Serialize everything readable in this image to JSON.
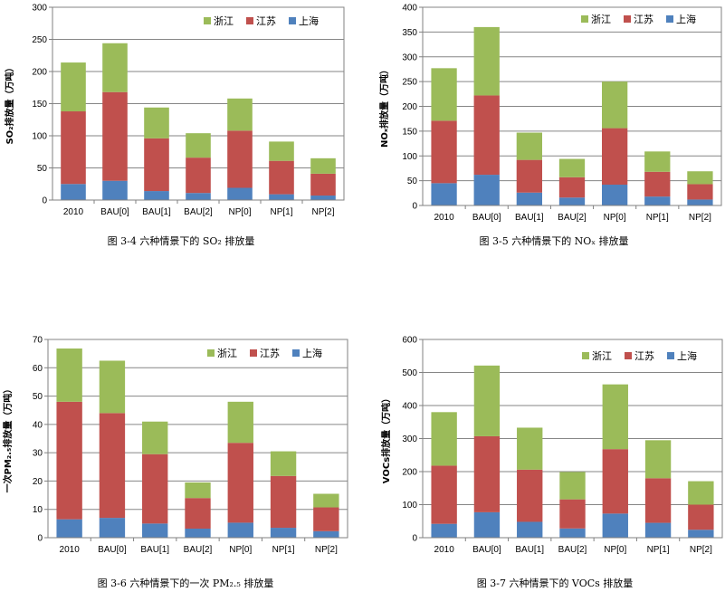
{
  "colors": {
    "shanghai": "#4F81BD",
    "jiangsu": "#C0504D",
    "zhejiang": "#9BBB59"
  },
  "chart_data": [
    {
      "type": "bar",
      "stacked": true,
      "caption": "图 3-4 六种情景下的 SO₂ 排放量",
      "ylabel": "SO₂排放量（万吨）",
      "ylim": [
        0,
        300
      ],
      "yticks": [
        0,
        50,
        100,
        150,
        200,
        250,
        300
      ],
      "categories": [
        "2010",
        "BAU[0]",
        "BAU[1]",
        "BAU[2]",
        "NP[0]",
        "NP[1]",
        "NP[2]"
      ],
      "series": [
        {
          "name": "上海",
          "values": [
            25,
            30,
            14,
            11,
            19,
            9,
            7
          ]
        },
        {
          "name": "江苏",
          "values": [
            113,
            138,
            82,
            55,
            89,
            52,
            34
          ]
        },
        {
          "name": "浙江",
          "values": [
            76,
            76,
            48,
            38,
            50,
            30,
            24
          ]
        }
      ],
      "legend": "top-right",
      "grid": true
    },
    {
      "type": "bar",
      "stacked": true,
      "caption": "图 3-5 六种情景下的 NOₓ 排放量",
      "ylabel": "NOₓ排放量（万吨）",
      "ylim": [
        0,
        400
      ],
      "yticks": [
        0,
        50,
        100,
        150,
        200,
        250,
        300,
        350,
        400
      ],
      "categories": [
        "2010",
        "BAU[0]",
        "BAU[1]",
        "BAU[2]",
        "NP[0]",
        "NP[1]",
        "NP[2]"
      ],
      "series": [
        {
          "name": "上海",
          "values": [
            45,
            62,
            26,
            16,
            42,
            18,
            12
          ]
        },
        {
          "name": "江苏",
          "values": [
            126,
            160,
            66,
            41,
            114,
            50,
            31
          ]
        },
        {
          "name": "浙江",
          "values": [
            106,
            138,
            55,
            37,
            94,
            41,
            26
          ]
        }
      ],
      "legend": "top-right",
      "grid": true
    },
    {
      "type": "bar",
      "stacked": true,
      "caption": "图 3-6 六种情景下的一次 PM₂.₅ 排放量",
      "ylabel": "一次PM₂.₅排放量（万吨）",
      "ylim": [
        0,
        70
      ],
      "yticks": [
        0,
        10,
        20,
        30,
        40,
        50,
        60,
        70
      ],
      "categories": [
        "2010",
        "BAU[0]",
        "BAU[1]",
        "BAU[2]",
        "NP[0]",
        "NP[1]",
        "NP[2]"
      ],
      "series": [
        {
          "name": "上海",
          "values": [
            6.5,
            7,
            5,
            3.2,
            5.3,
            3.5,
            2.3
          ]
        },
        {
          "name": "江苏",
          "values": [
            41.5,
            37,
            24.5,
            10.8,
            28.2,
            18.3,
            8.4
          ]
        },
        {
          "name": "浙江",
          "values": [
            18.8,
            18.5,
            11.5,
            5.5,
            14.5,
            8.7,
            4.8
          ]
        }
      ],
      "legend": "top-right",
      "grid": true
    },
    {
      "type": "bar",
      "stacked": true,
      "caption": "图 3-7 六种情景下的 VOCs 排放量",
      "ylabel": "VOCs排放量（万吨）",
      "ylim": [
        0,
        600
      ],
      "yticks": [
        0,
        100,
        200,
        300,
        400,
        500,
        600
      ],
      "categories": [
        "2010",
        "BAU[0]",
        "BAU[1]",
        "BAU[2]",
        "NP[0]",
        "NP[1]",
        "NP[2]"
      ],
      "series": [
        {
          "name": "上海",
          "values": [
            42,
            77,
            48,
            28,
            73,
            45,
            24
          ]
        },
        {
          "name": "江苏",
          "values": [
            176,
            230,
            158,
            88,
            195,
            135,
            76
          ]
        },
        {
          "name": "浙江",
          "values": [
            162,
            214,
            127,
            83,
            196,
            115,
            71
          ]
        }
      ],
      "legend": "top-right",
      "grid": true
    }
  ]
}
